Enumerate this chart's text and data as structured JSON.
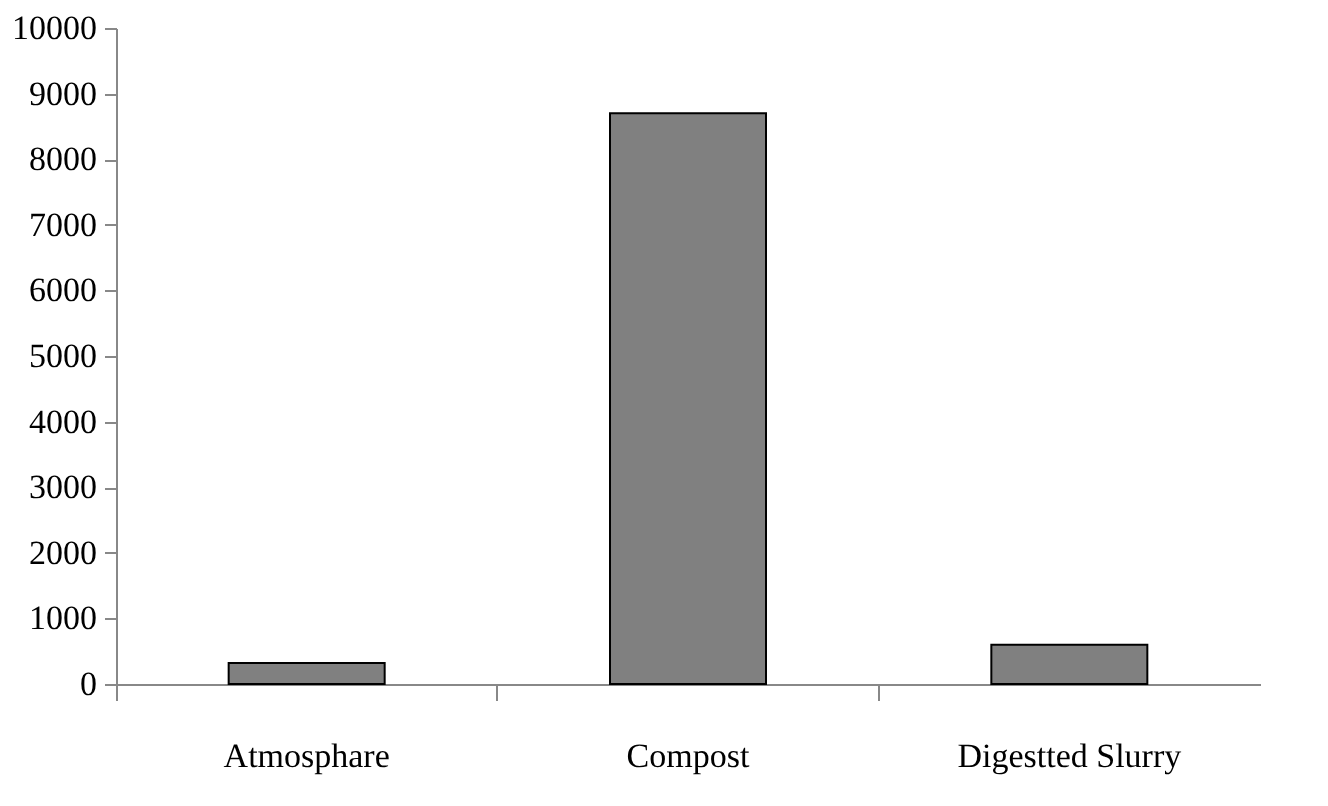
{
  "chart_data": {
    "type": "bar",
    "categories": [
      "Atmosphare",
      "Compost",
      "Digestted Slurry"
    ],
    "values": [
      320,
      8700,
      600
    ],
    "color": "#808080",
    "ylim": [
      0,
      10000
    ],
    "yticks": [
      0,
      1000,
      2000,
      3000,
      4000,
      5000,
      6000,
      7000,
      8000,
      9000,
      10000
    ],
    "grid": false
  }
}
